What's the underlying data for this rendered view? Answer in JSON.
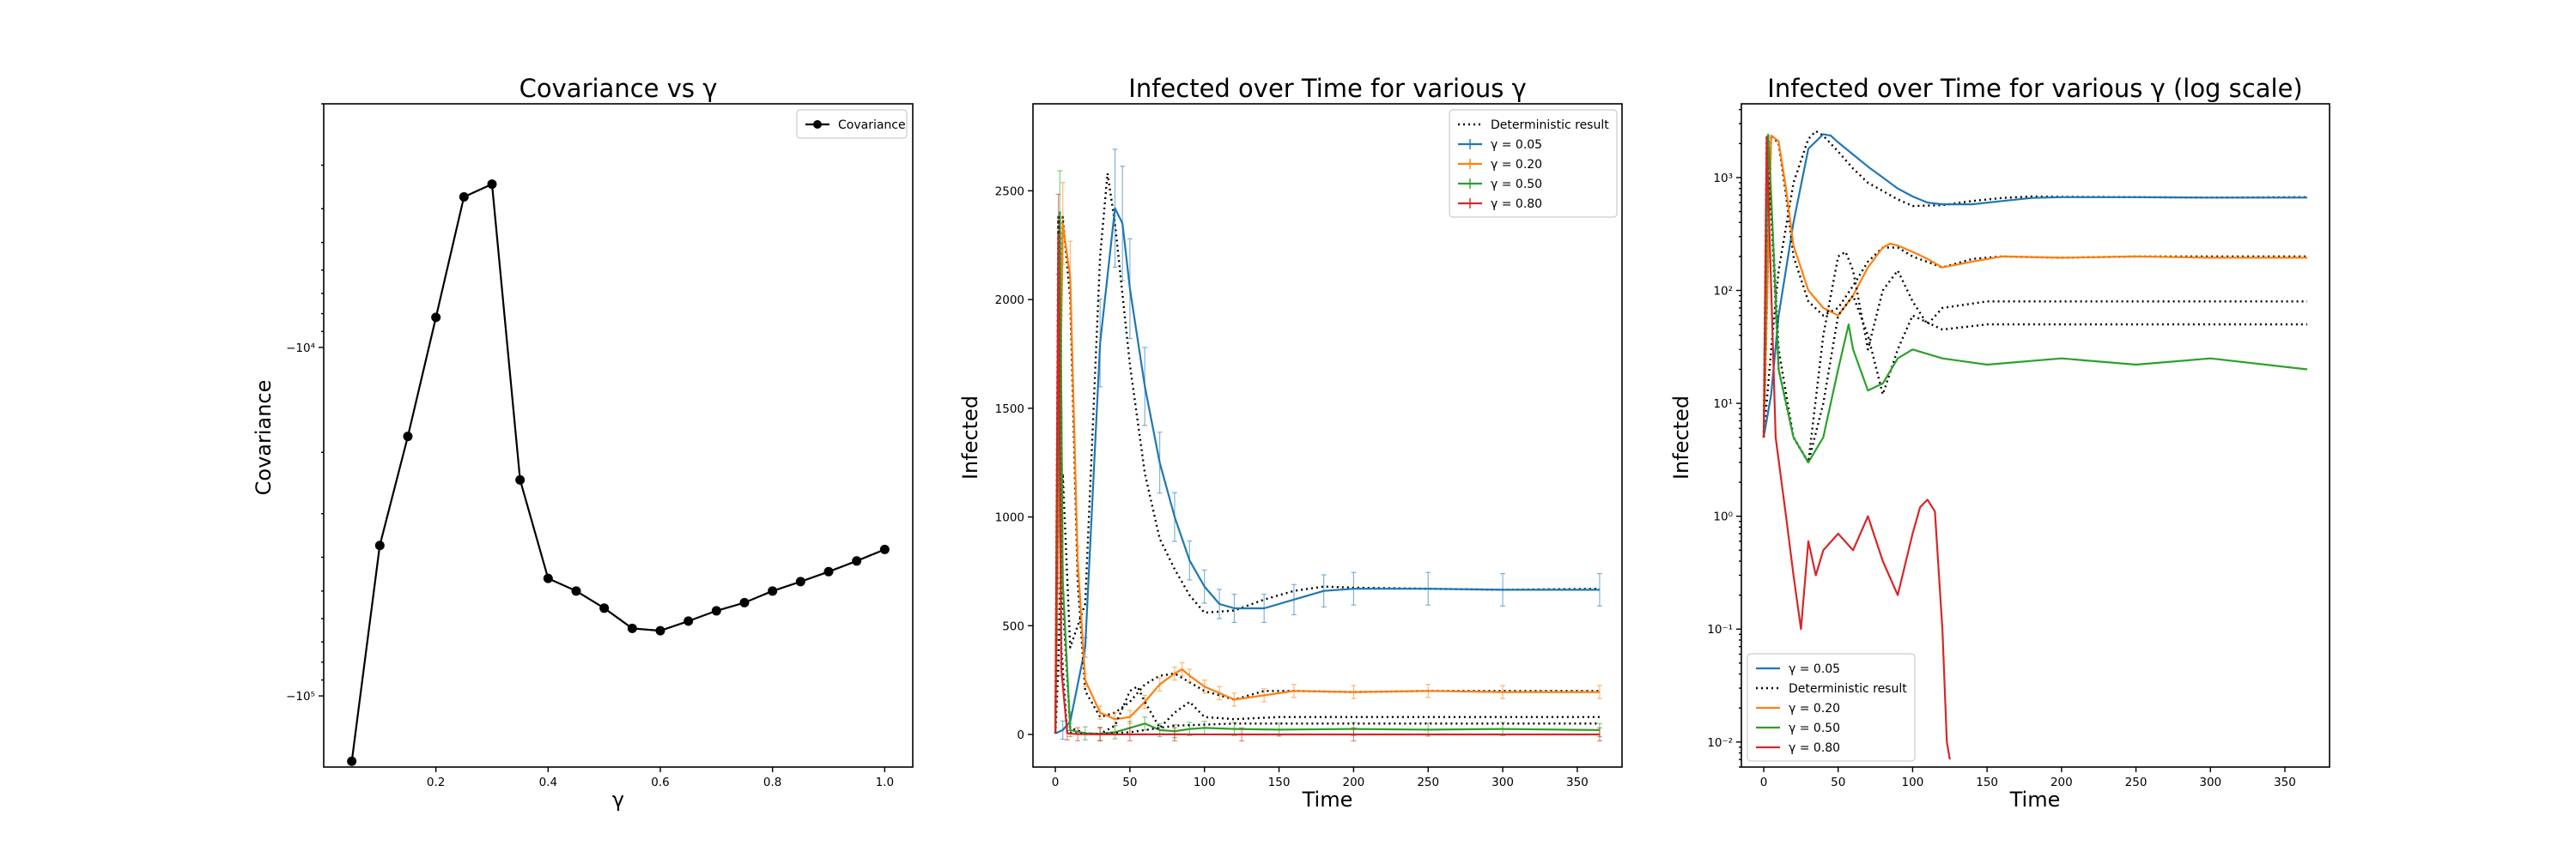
{
  "colors": {
    "blue": "#1f77b4",
    "orange": "#ff7f0e",
    "green": "#2ca02c",
    "red": "#d62728",
    "black": "#000000"
  },
  "chart_data": [
    {
      "type": "line",
      "title": "Covariance vs γ",
      "xlabel": "γ",
      "ylabel": "Covariance",
      "xlim": [
        0.0,
        1.05
      ],
      "yscale": "symlog",
      "ylim": [
        -160000,
        -2000
      ],
      "xticks": [
        0.2,
        0.4,
        0.6,
        0.8,
        1.0
      ],
      "xtick_labels": [
        "0.2",
        "0.4",
        "0.6",
        "0.8",
        "1.0"
      ],
      "ytick_labels": [
        "−10⁴",
        "−10⁵"
      ],
      "legend": "top-right",
      "grid": false,
      "series": [
        {
          "name": "Covariance",
          "color": "black",
          "marker": "circle",
          "x": [
            0.05,
            0.1,
            0.15,
            0.2,
            0.25,
            0.3,
            0.35,
            0.4,
            0.45,
            0.5,
            0.55,
            0.6,
            0.65,
            0.7,
            0.75,
            0.8,
            0.85,
            0.9,
            0.95,
            1.0
          ],
          "y": [
            -154000,
            -37000,
            -18000,
            -8200,
            -3700,
            -3400,
            -24000,
            -46000,
            -50000,
            -56000,
            -64000,
            -65000,
            -61000,
            -57000,
            -54000,
            -50000,
            -47000,
            -44000,
            -41000,
            -38000
          ]
        }
      ]
    },
    {
      "type": "line",
      "title": "Infected over Time for various γ",
      "xlabel": "Time",
      "ylabel": "Infected",
      "xlim": [
        -15,
        380
      ],
      "ylim": [
        -150,
        2900
      ],
      "xticks": [
        0,
        50,
        100,
        150,
        200,
        250,
        300,
        350
      ],
      "xtick_labels": [
        "0",
        "50",
        "100",
        "150",
        "200",
        "250",
        "300",
        "350"
      ],
      "yticks": [
        0,
        500,
        1000,
        1500,
        2000,
        2500
      ],
      "ytick_labels": [
        "0",
        "500",
        "1000",
        "1500",
        "2000",
        "2500"
      ],
      "legend": "top-right",
      "grid": false,
      "legend_entries": [
        {
          "label": "Deterministic result",
          "color": "black",
          "style": "dotted"
        },
        {
          "label": "γ = 0.05",
          "color": "blue",
          "style": "errorbar"
        },
        {
          "label": "γ = 0.20",
          "color": "orange",
          "style": "errorbar"
        },
        {
          "label": "γ = 0.50",
          "color": "green",
          "style": "errorbar"
        },
        {
          "label": "γ = 0.80",
          "color": "red",
          "style": "errorbar"
        }
      ],
      "series": [
        {
          "name": "Deterministic result",
          "color": "black",
          "dashed": true,
          "x": [
            0,
            2,
            5,
            10,
            20,
            30,
            35,
            40,
            50,
            60,
            70,
            80,
            90,
            100,
            120,
            140,
            160,
            180,
            200,
            250,
            300,
            365
          ],
          "y": [
            5,
            300,
            1200,
            400,
            600,
            2200,
            2580,
            2350,
            1700,
            1200,
            900,
            760,
            640,
            560,
            570,
            620,
            660,
            680,
            675,
            670,
            665,
            670
          ]
        },
        {
          "name": "γ = 0.05",
          "color": "blue",
          "errorbars": true,
          "x": [
            0,
            5,
            10,
            20,
            30,
            40,
            45,
            50,
            60,
            70,
            80,
            90,
            100,
            110,
            120,
            140,
            160,
            180,
            200,
            250,
            300,
            365
          ],
          "y": [
            5,
            20,
            60,
            400,
            1800,
            2420,
            2350,
            2050,
            1600,
            1250,
            1000,
            800,
            680,
            600,
            580,
            580,
            620,
            660,
            670,
            670,
            665,
            665
          ]
        },
        {
          "name": "Deterministic result",
          "color": "black",
          "dashed": true,
          "x": [
            0,
            5,
            10,
            15,
            20,
            30,
            40,
            50,
            60,
            70,
            80,
            90,
            100,
            120,
            140,
            160,
            200,
            250,
            300,
            365
          ],
          "y": [
            5,
            2380,
            2000,
            700,
            200,
            80,
            100,
            150,
            230,
            270,
            280,
            240,
            200,
            160,
            200,
            200,
            195,
            200,
            200,
            200
          ]
        },
        {
          "name": "γ = 0.20",
          "color": "orange",
          "errorbars": true,
          "x": [
            0,
            5,
            10,
            15,
            20,
            30,
            40,
            50,
            60,
            70,
            80,
            85,
            90,
            100,
            110,
            120,
            140,
            160,
            200,
            250,
            300,
            365
          ],
          "y": [
            5,
            2350,
            2100,
            800,
            250,
            100,
            70,
            80,
            150,
            230,
            280,
            300,
            270,
            220,
            190,
            160,
            180,
            200,
            195,
            200,
            195,
            195
          ]
        },
        {
          "name": "Deterministic result",
          "color": "black",
          "dashed": true,
          "x": [
            0,
            3,
            5,
            10,
            20,
            30,
            40,
            50,
            55,
            60,
            70,
            80,
            90,
            100,
            120,
            150,
            200,
            300,
            365
          ],
          "y": [
            5,
            2400,
            600,
            30,
            5,
            3,
            40,
            200,
            220,
            150,
            30,
            100,
            150,
            80,
            70,
            80,
            80,
            80,
            80
          ]
        },
        {
          "name": "γ = 0.50",
          "color": "green",
          "errorbars": true,
          "x": [
            0,
            3,
            5,
            10,
            20,
            30,
            40,
            50,
            60,
            70,
            80,
            90,
            100,
            120,
            150,
            200,
            250,
            300,
            365
          ],
          "y": [
            5,
            2400,
            700,
            20,
            5,
            3,
            10,
            30,
            50,
            20,
            15,
            25,
            30,
            25,
            22,
            25,
            22,
            25,
            20
          ]
        },
        {
          "name": "Deterministic result",
          "color": "black",
          "dashed": true,
          "x": [
            0,
            2,
            4,
            8,
            15,
            30,
            50,
            80,
            120,
            200,
            365
          ],
          "y": [
            5,
            2380,
            400,
            10,
            3,
            2,
            10,
            40,
            50,
            50,
            50
          ]
        },
        {
          "name": "γ = 0.80",
          "color": "red",
          "errorbars": true,
          "x": [
            0,
            2,
            4,
            8,
            15,
            30,
            50,
            80,
            125,
            200,
            365
          ],
          "y": [
            5,
            2300,
            300,
            5,
            1,
            0.2,
            0.5,
            0.5,
            0,
            0,
            0
          ]
        }
      ]
    },
    {
      "type": "line",
      "title": "Infected over Time for various γ (log scale)",
      "xlabel": "Time",
      "ylabel": "Infected",
      "yscale": "log",
      "xlim": [
        -15,
        380
      ],
      "ylim": [
        0.006,
        4500
      ],
      "xticks": [
        0,
        50,
        100,
        150,
        200,
        250,
        300,
        350
      ],
      "xtick_labels": [
        "0",
        "50",
        "100",
        "150",
        "200",
        "250",
        "300",
        "350"
      ],
      "ytick_labels": [
        "10⁻²",
        "10⁻¹",
        "10⁰",
        "10¹",
        "10²",
        "10³"
      ],
      "legend": "lower-left",
      "grid": false,
      "legend_entries": [
        {
          "label": "γ = 0.05",
          "color": "blue",
          "style": "solid"
        },
        {
          "label": "Deterministic result",
          "color": "black",
          "style": "dotted"
        },
        {
          "label": "γ = 0.20",
          "color": "orange",
          "style": "solid"
        },
        {
          "label": "γ = 0.50",
          "color": "green",
          "style": "solid"
        },
        {
          "label": "γ = 0.80",
          "color": "red",
          "style": "solid"
        }
      ],
      "series": [
        {
          "name": "Deterministic result",
          "color": "black",
          "dashed": true,
          "x": [
            0,
            5,
            10,
            20,
            30,
            35,
            40,
            50,
            60,
            70,
            80,
            90,
            100,
            120,
            140,
            160,
            180,
            200,
            250,
            300,
            365
          ],
          "y": [
            5,
            30,
            150,
            900,
            2200,
            2580,
            2350,
            1700,
            1200,
            900,
            760,
            640,
            560,
            570,
            620,
            660,
            680,
            675,
            670,
            665,
            670
          ]
        },
        {
          "name": "γ = 0.05",
          "color": "blue",
          "x": [
            0,
            5,
            10,
            20,
            30,
            40,
            45,
            50,
            60,
            70,
            80,
            90,
            100,
            110,
            120,
            140,
            160,
            180,
            200,
            250,
            300,
            365
          ],
          "y": [
            5,
            12,
            60,
            400,
            1800,
            2420,
            2350,
            2050,
            1600,
            1250,
            1000,
            800,
            680,
            600,
            580,
            580,
            620,
            660,
            670,
            670,
            665,
            665
          ]
        },
        {
          "name": "Deterministic result",
          "color": "black",
          "dashed": true,
          "x": [
            0,
            5,
            10,
            15,
            20,
            30,
            40,
            50,
            60,
            70,
            80,
            90,
            100,
            120,
            140,
            160,
            200,
            250,
            300,
            365
          ],
          "y": [
            5,
            2380,
            2000,
            700,
            200,
            80,
            60,
            70,
            110,
            180,
            240,
            240,
            200,
            160,
            190,
            200,
            195,
            200,
            200,
            200
          ]
        },
        {
          "name": "γ = 0.20",
          "color": "orange",
          "x": [
            0,
            5,
            10,
            15,
            20,
            30,
            40,
            50,
            60,
            70,
            80,
            85,
            90,
            100,
            110,
            120,
            140,
            160,
            200,
            250,
            300,
            365
          ],
          "y": [
            5,
            2350,
            2100,
            800,
            250,
            100,
            70,
            60,
            90,
            160,
            240,
            260,
            250,
            220,
            190,
            160,
            180,
            200,
            195,
            200,
            195,
            195
          ]
        },
        {
          "name": "Deterministic result",
          "color": "black",
          "dashed": true,
          "x": [
            0,
            3,
            5,
            10,
            20,
            30,
            40,
            50,
            55,
            60,
            70,
            80,
            90,
            100,
            110,
            120,
            150,
            200,
            300,
            365
          ],
          "y": [
            5,
            2400,
            600,
            30,
            5,
            3,
            40,
            200,
            220,
            150,
            30,
            100,
            150,
            80,
            50,
            70,
            80,
            80,
            80,
            80
          ]
        },
        {
          "name": "Deterministic result",
          "color": "black",
          "dashed": true,
          "x": [
            0,
            2,
            5,
            10,
            20,
            30,
            40,
            50,
            60,
            70,
            80,
            90,
            100,
            120,
            150,
            200,
            300,
            365
          ],
          "y": [
            5,
            2380,
            500,
            20,
            5,
            3,
            10,
            60,
            90,
            40,
            12,
            30,
            60,
            45,
            50,
            50,
            50,
            50
          ]
        },
        {
          "name": "γ = 0.50",
          "color": "green",
          "x": [
            0,
            3,
            5,
            10,
            20,
            30,
            40,
            50,
            57,
            60,
            70,
            80,
            90,
            100,
            120,
            150,
            200,
            250,
            300,
            365
          ],
          "y": [
            5,
            2400,
            700,
            20,
            5,
            3,
            5,
            20,
            50,
            30,
            13,
            15,
            25,
            30,
            25,
            22,
            25,
            22,
            25,
            20
          ]
        },
        {
          "name": "γ = 0.80",
          "color": "red",
          "x": [
            0,
            2,
            4,
            8,
            15,
            20,
            25,
            30,
            35,
            40,
            50,
            60,
            70,
            80,
            90,
            100,
            105,
            110,
            115,
            120,
            123,
            125
          ],
          "y": [
            5,
            2300,
            300,
            5,
            1,
            0.3,
            0.1,
            0.6,
            0.3,
            0.5,
            0.7,
            0.5,
            1.0,
            0.4,
            0.2,
            0.7,
            1.2,
            1.4,
            1.1,
            0.1,
            0.01,
            0.007
          ]
        }
      ]
    }
  ]
}
